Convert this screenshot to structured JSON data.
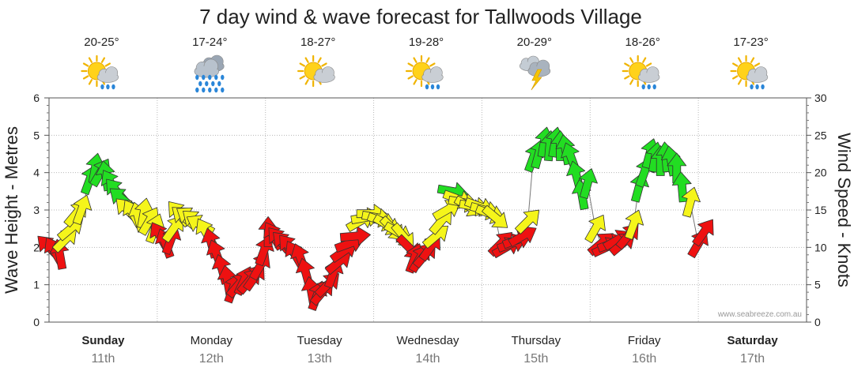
{
  "chart_data": {
    "type": "line",
    "title": "7 day wind & wave forecast for Tallwoods Village",
    "ylabel_left": "Wave Height - Metres",
    "ylabel_right": "Wind Speed - Knots",
    "ylim_left": [
      0,
      6
    ],
    "ylim_right": [
      0,
      30
    ],
    "yticks_left": [
      "0",
      "1",
      "2",
      "3",
      "4",
      "5",
      "6"
    ],
    "yticks_right": [
      "0",
      "5",
      "10",
      "15",
      "20",
      "25",
      "30"
    ],
    "watermark": "www.seabreeze.com.au",
    "colors": {
      "green": "#22dd22",
      "yellow": "#f5f51a",
      "red": "#ee1111"
    },
    "legend_note": "arrow colour = wind strength (green strong, yellow moderate, red light)",
    "days": [
      {
        "name": "Sunday",
        "date": "11th",
        "bold": true,
        "temp": "20-25°",
        "icon": "sun-cloud-rain-icon"
      },
      {
        "name": "Monday",
        "date": "12th",
        "bold": false,
        "temp": "17-24°",
        "icon": "heavy-rain-icon"
      },
      {
        "name": "Tuesday",
        "date": "13th",
        "bold": false,
        "temp": "18-27°",
        "icon": "sun-cloud-icon"
      },
      {
        "name": "Wednesday",
        "date": "14th",
        "bold": false,
        "temp": "19-28°",
        "icon": "sun-cloud-rain-icon"
      },
      {
        "name": "Thursday",
        "date": "15th",
        "bold": false,
        "temp": "20-29°",
        "icon": "storm-icon"
      },
      {
        "name": "Friday",
        "date": "16th",
        "bold": false,
        "temp": "18-26°",
        "icon": "sun-cloud-rain-icon"
      },
      {
        "name": "Saturday",
        "date": "17th",
        "bold": true,
        "temp": "17-23°",
        "icon": "sun-cloud-rain-icon"
      }
    ],
    "wind_series": [
      {
        "t": 0.0,
        "knots": 10.0,
        "dir": 135,
        "color": "red"
      },
      {
        "t": 0.1,
        "knots": 9.5,
        "dir": 150,
        "color": "red"
      },
      {
        "t": 0.2,
        "knots": 9.0,
        "dir": 170,
        "color": "red"
      },
      {
        "t": 0.3,
        "knots": 11.0,
        "dir": 225,
        "color": "yellow"
      },
      {
        "t": 0.4,
        "knots": 12.5,
        "dir": 230,
        "color": "yellow"
      },
      {
        "t": 0.5,
        "knots": 14.5,
        "dir": 220,
        "color": "yellow"
      },
      {
        "t": 0.6,
        "knots": 15.0,
        "dir": 200,
        "color": "yellow"
      },
      {
        "t": 0.75,
        "knots": 19.0,
        "dir": 200,
        "color": "green"
      },
      {
        "t": 0.85,
        "knots": 20.5,
        "dir": 190,
        "color": "green"
      },
      {
        "t": 0.95,
        "knots": 20.0,
        "dir": 210,
        "color": "green"
      },
      {
        "t": 1.05,
        "knots": 19.5,
        "dir": 170,
        "color": "green"
      },
      {
        "t": 1.15,
        "knots": 18.5,
        "dir": 150,
        "color": "green"
      },
      {
        "t": 1.25,
        "knots": 17.5,
        "dir": 140,
        "color": "green"
      },
      {
        "t": 1.35,
        "knots": 16.5,
        "dir": 130,
        "color": "green"
      },
      {
        "t": 1.45,
        "knots": 15.0,
        "dir": 135,
        "color": "yellow"
      },
      {
        "t": 1.55,
        "knots": 14.5,
        "dir": 150,
        "color": "yellow"
      },
      {
        "t": 1.65,
        "knots": 14.0,
        "dir": 165,
        "color": "yellow"
      },
      {
        "t": 1.75,
        "knots": 14.5,
        "dir": 190,
        "color": "yellow"
      },
      {
        "t": 1.85,
        "knots": 13.5,
        "dir": 210,
        "color": "yellow"
      },
      {
        "t": 1.95,
        "knots": 12.5,
        "dir": 200,
        "color": "yellow"
      },
      {
        "t": 2.05,
        "knots": 11.5,
        "dir": 150,
        "color": "red"
      },
      {
        "t": 2.15,
        "knots": 10.5,
        "dir": 160,
        "color": "red"
      },
      {
        "t": 2.25,
        "knots": 11.0,
        "dir": 200,
        "color": "red"
      },
      {
        "t": 2.3,
        "knots": 12.5,
        "dir": 215,
        "color": "yellow"
      },
      {
        "t": 2.4,
        "knots": 14.5,
        "dir": 140,
        "color": "yellow"
      },
      {
        "t": 2.5,
        "knots": 14.0,
        "dir": 130,
        "color": "yellow"
      },
      {
        "t": 2.6,
        "knots": 14.0,
        "dir": 125,
        "color": "yellow"
      },
      {
        "t": 2.7,
        "knots": 13.5,
        "dir": 130,
        "color": "yellow"
      },
      {
        "t": 2.8,
        "knots": 13.0,
        "dir": 120,
        "color": "yellow"
      },
      {
        "t": 2.9,
        "knots": 12.0,
        "dir": 150,
        "color": "yellow"
      },
      {
        "t": 3.0,
        "knots": 10.5,
        "dir": 165,
        "color": "red"
      },
      {
        "t": 3.1,
        "knots": 9.0,
        "dir": 160,
        "color": "red"
      },
      {
        "t": 3.2,
        "knots": 7.0,
        "dir": 165,
        "color": "red"
      },
      {
        "t": 3.3,
        "knots": 5.5,
        "dir": 170,
        "color": "red"
      },
      {
        "t": 3.4,
        "knots": 4.5,
        "dir": 200,
        "color": "red"
      },
      {
        "t": 3.5,
        "knots": 5.0,
        "dir": 220,
        "color": "red"
      },
      {
        "t": 3.6,
        "knots": 5.5,
        "dir": 205,
        "color": "red"
      },
      {
        "t": 3.7,
        "knots": 5.5,
        "dir": 220,
        "color": "red"
      },
      {
        "t": 3.8,
        "knots": 6.0,
        "dir": 215,
        "color": "red"
      },
      {
        "t": 3.9,
        "knots": 7.5,
        "dir": 210,
        "color": "red"
      },
      {
        "t": 3.97,
        "knots": 9.5,
        "dir": 200,
        "color": "red"
      },
      {
        "t": 4.05,
        "knots": 12.0,
        "dir": 180,
        "color": "red"
      },
      {
        "t": 4.15,
        "knots": 11.5,
        "dir": 150,
        "color": "red"
      },
      {
        "t": 4.25,
        "knots": 11.0,
        "dir": 140,
        "color": "red"
      },
      {
        "t": 4.35,
        "knots": 10.5,
        "dir": 135,
        "color": "red"
      },
      {
        "t": 4.45,
        "knots": 10.0,
        "dir": 140,
        "color": "red"
      },
      {
        "t": 4.55,
        "knots": 9.0,
        "dir": 150,
        "color": "red"
      },
      {
        "t": 4.65,
        "knots": 8.5,
        "dir": 160,
        "color": "red"
      },
      {
        "t": 4.75,
        "knots": 6.5,
        "dir": 165,
        "color": "red"
      },
      {
        "t": 4.85,
        "knots": 4.0,
        "dir": 170,
        "color": "red"
      },
      {
        "t": 4.95,
        "knots": 3.5,
        "dir": 200,
        "color": "red"
      },
      {
        "t": 5.05,
        "knots": 4.0,
        "dir": 220,
        "color": "red"
      },
      {
        "t": 5.15,
        "knots": 5.0,
        "dir": 225,
        "color": "red"
      },
      {
        "t": 5.25,
        "knots": 6.5,
        "dir": 200,
        "color": "red"
      },
      {
        "t": 5.35,
        "knots": 8.0,
        "dir": 230,
        "color": "red"
      },
      {
        "t": 5.45,
        "knots": 9.5,
        "dir": 235,
        "color": "red"
      },
      {
        "t": 5.55,
        "knots": 10.5,
        "dir": 250,
        "color": "red"
      },
      {
        "t": 5.65,
        "knots": 11.5,
        "dir": 265,
        "color": "red"
      },
      {
        "t": 5.75,
        "knots": 13.5,
        "dir": 240,
        "color": "yellow"
      },
      {
        "t": 5.85,
        "knots": 14.0,
        "dir": 260,
        "color": "yellow"
      },
      {
        "t": 5.95,
        "knots": 14.5,
        "dir": 270,
        "color": "yellow"
      },
      {
        "t": 6.05,
        "knots": 14.0,
        "dir": 280,
        "color": "yellow"
      },
      {
        "t": 6.15,
        "knots": 13.5,
        "dir": 290,
        "color": "yellow"
      },
      {
        "t": 6.25,
        "knots": 13.0,
        "dir": 300,
        "color": "yellow"
      },
      {
        "t": 6.35,
        "knots": 12.5,
        "dir": 315,
        "color": "yellow"
      },
      {
        "t": 6.45,
        "knots": 12.0,
        "dir": 300,
        "color": "yellow"
      },
      {
        "t": 6.55,
        "knots": 11.5,
        "dir": 320,
        "color": "yellow"
      },
      {
        "t": 6.65,
        "knots": 10.0,
        "dir": 315,
        "color": "red"
      },
      {
        "t": 6.75,
        "knots": 8.5,
        "dir": 200,
        "color": "red"
      },
      {
        "t": 6.85,
        "knots": 8.5,
        "dir": 210,
        "color": "red"
      },
      {
        "t": 6.95,
        "knots": 9.0,
        "dir": 220,
        "color": "red"
      },
      {
        "t": 7.05,
        "knots": 10.0,
        "dir": 215,
        "color": "red"
      },
      {
        "t": 7.15,
        "knots": 11.5,
        "dir": 230,
        "color": "yellow"
      },
      {
        "t": 7.25,
        "knots": 13.5,
        "dir": 220,
        "color": "yellow"
      },
      {
        "t": 7.35,
        "knots": 15.0,
        "dir": 240,
        "color": "yellow"
      },
      {
        "t": 7.45,
        "knots": 17.5,
        "dir": 280,
        "color": "green"
      },
      {
        "t": 7.55,
        "knots": 16.5,
        "dir": 290,
        "color": "yellow"
      },
      {
        "t": 7.65,
        "knots": 16.0,
        "dir": 280,
        "color": "yellow"
      },
      {
        "t": 7.75,
        "knots": 15.5,
        "dir": 300,
        "color": "yellow"
      },
      {
        "t": 7.85,
        "knots": 15.5,
        "dir": 280,
        "color": "yellow"
      },
      {
        "t": 7.95,
        "knots": 15.5,
        "dir": 290,
        "color": "yellow"
      },
      {
        "t": 8.05,
        "knots": 15.0,
        "dir": 285,
        "color": "yellow"
      },
      {
        "t": 8.15,
        "knots": 14.5,
        "dir": 290,
        "color": "yellow"
      },
      {
        "t": 8.25,
        "knots": 14.0,
        "dir": 310,
        "color": "yellow"
      },
      {
        "t": 8.35,
        "knots": 10.5,
        "dir": 225,
        "color": "red"
      },
      {
        "t": 8.45,
        "knots": 10.0,
        "dir": 240,
        "color": "red"
      },
      {
        "t": 8.55,
        "knots": 10.5,
        "dir": 250,
        "color": "red"
      },
      {
        "t": 8.65,
        "knots": 11.0,
        "dir": 250,
        "color": "red"
      },
      {
        "t": 8.75,
        "knots": 11.5,
        "dir": 240,
        "color": "red"
      },
      {
        "t": 8.85,
        "knots": 13.5,
        "dir": 225,
        "color": "yellow"
      },
      {
        "t": 8.95,
        "knots": 22.0,
        "dir": 200,
        "color": "green"
      },
      {
        "t": 9.05,
        "knots": 22.5,
        "dir": 195,
        "color": "green"
      },
      {
        "t": 9.15,
        "knots": 24.0,
        "dir": 190,
        "color": "green"
      },
      {
        "t": 9.25,
        "knots": 23.5,
        "dir": 185,
        "color": "green"
      },
      {
        "t": 9.35,
        "knots": 24.0,
        "dir": 190,
        "color": "green"
      },
      {
        "t": 9.45,
        "knots": 23.5,
        "dir": 180,
        "color": "green"
      },
      {
        "t": 9.55,
        "knots": 23.0,
        "dir": 170,
        "color": "green"
      },
      {
        "t": 9.65,
        "knots": 22.0,
        "dir": 160,
        "color": "green"
      },
      {
        "t": 9.75,
        "knots": 19.5,
        "dir": 165,
        "color": "green"
      },
      {
        "t": 9.85,
        "knots": 17.0,
        "dir": 170,
        "color": "green"
      },
      {
        "t": 9.95,
        "knots": 18.5,
        "dir": 195,
        "color": "green"
      },
      {
        "t": 10.1,
        "knots": 12.5,
        "dir": 210,
        "color": "yellow"
      },
      {
        "t": 10.2,
        "knots": 10.5,
        "dir": 230,
        "color": "red"
      },
      {
        "t": 10.3,
        "knots": 10.0,
        "dir": 245,
        "color": "red"
      },
      {
        "t": 10.4,
        "knots": 10.5,
        "dir": 250,
        "color": "red"
      },
      {
        "t": 10.5,
        "knots": 11.0,
        "dir": 240,
        "color": "red"
      },
      {
        "t": 10.6,
        "knots": 10.5,
        "dir": 230,
        "color": "red"
      },
      {
        "t": 10.7,
        "knots": 11.5,
        "dir": 220,
        "color": "red"
      },
      {
        "t": 10.8,
        "knots": 13.0,
        "dir": 200,
        "color": "yellow"
      },
      {
        "t": 10.9,
        "knots": 18.0,
        "dir": 195,
        "color": "green"
      },
      {
        "t": 11.0,
        "knots": 20.0,
        "dir": 200,
        "color": "green"
      },
      {
        "t": 11.1,
        "knots": 22.5,
        "dir": 195,
        "color": "green"
      },
      {
        "t": 11.2,
        "knots": 22.0,
        "dir": 190,
        "color": "green"
      },
      {
        "t": 11.3,
        "knots": 21.5,
        "dir": 180,
        "color": "green"
      },
      {
        "t": 11.4,
        "knots": 22.0,
        "dir": 175,
        "color": "green"
      },
      {
        "t": 11.5,
        "knots": 21.5,
        "dir": 170,
        "color": "green"
      },
      {
        "t": 11.6,
        "knots": 20.5,
        "dir": 180,
        "color": "green"
      },
      {
        "t": 11.7,
        "knots": 18.0,
        "dir": 175,
        "color": "green"
      },
      {
        "t": 11.85,
        "knots": 16.0,
        "dir": 195,
        "color": "yellow"
      },
      {
        "t": 12.0,
        "knots": 10.5,
        "dir": 210,
        "color": "red"
      },
      {
        "t": 12.1,
        "knots": 12.0,
        "dir": 215,
        "color": "red"
      }
    ]
  }
}
